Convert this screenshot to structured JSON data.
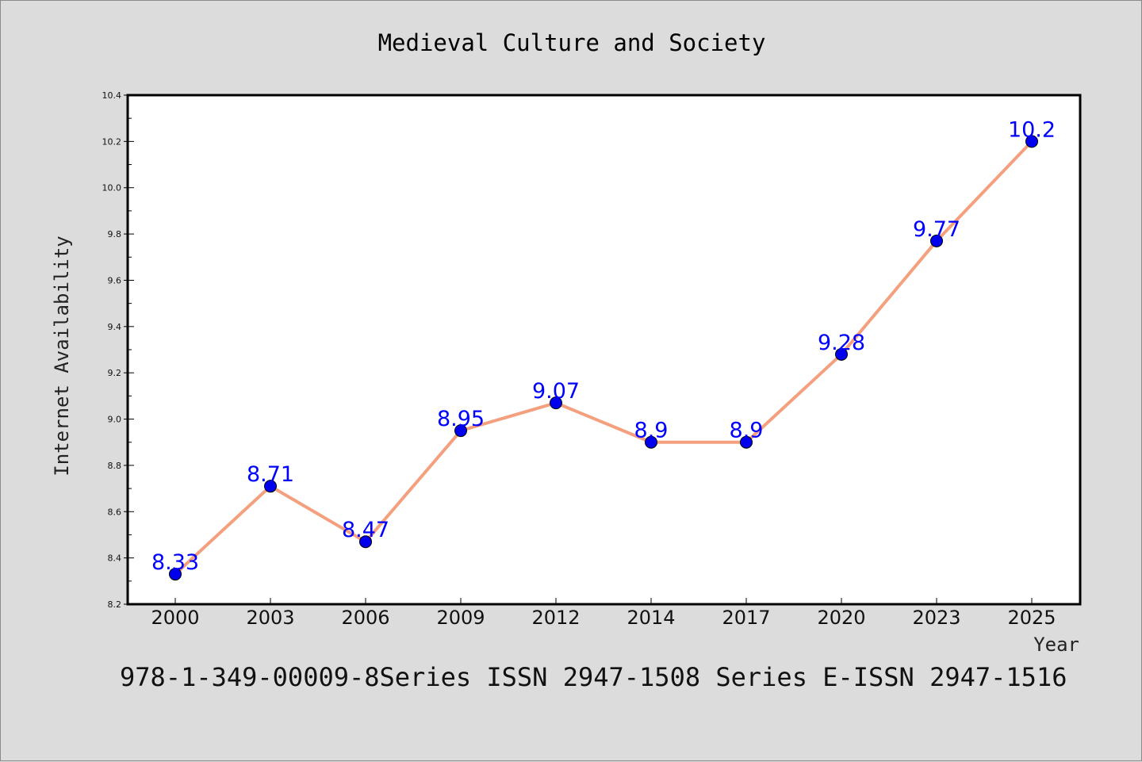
{
  "chart_data": {
    "type": "line",
    "title": "Medieval Culture and Society",
    "xlabel": "Year",
    "ylabel": "Internet Availability",
    "categories": [
      "2000",
      "2003",
      "2006",
      "2009",
      "2012",
      "2014",
      "2017",
      "2020",
      "2023",
      "2025"
    ],
    "values": [
      8.33,
      8.71,
      8.47,
      8.95,
      9.07,
      8.9,
      8.9,
      9.28,
      9.77,
      10.2
    ],
    "data_labels": [
      "8.33",
      "8.71",
      "8.47",
      "8.95",
      "9.07",
      "8.9",
      "8.9",
      "9.28",
      "9.77",
      "10.2"
    ],
    "ylim": [
      8.2,
      10.4
    ],
    "yticks": [
      "8.2",
      "8.4",
      "8.6",
      "8.8",
      "9.0",
      "9.2",
      "9.4",
      "9.6",
      "9.8",
      "10.0",
      "10.2",
      "10.4"
    ],
    "grid": false,
    "legend": "none",
    "colors": {
      "line": "#f4a07e",
      "marker": "#0000ee",
      "label": "#0000ff"
    }
  },
  "footer": "978-1-349-00009-8Series ISSN 2947-1508 Series E-ISSN 2947-1516"
}
